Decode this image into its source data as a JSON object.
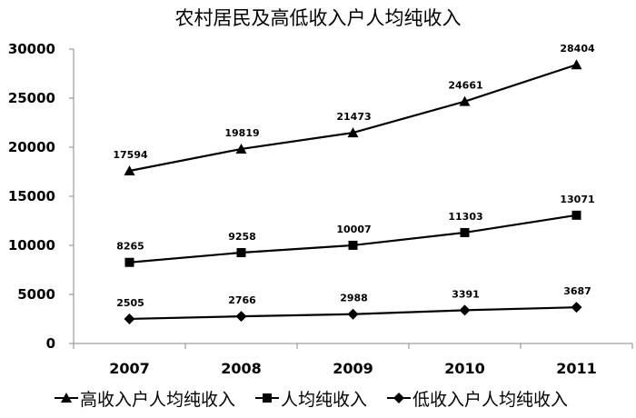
{
  "chart_data": {
    "type": "line",
    "title": "农村居民及高低收入户人均纯收入",
    "xlabel": "",
    "ylabel": "",
    "categories": [
      "2007",
      "2008",
      "2009",
      "2010",
      "2011"
    ],
    "series": [
      {
        "name": "高收入户人均纯收入",
        "marker": "triangle",
        "values": [
          17594,
          19819,
          21473,
          24661,
          28404
        ]
      },
      {
        "name": "人均纯收入",
        "marker": "square",
        "values": [
          8265,
          9258,
          10007,
          11303,
          13071
        ]
      },
      {
        "name": "低收入户人均纯收入",
        "marker": "diamond",
        "values": [
          2505,
          2766,
          2988,
          3391,
          3687
        ]
      }
    ],
    "ylim": [
      0,
      30000
    ],
    "yticks": [
      0,
      5000,
      10000,
      15000,
      20000,
      25000,
      30000
    ],
    "grid": false,
    "legend_position": "bottom",
    "data_labels": true,
    "line_color": "#000000"
  },
  "chart": {
    "title": "农村居民及高低收入户人均纯收入",
    "legend": [
      {
        "label": "高收入户人均纯收入",
        "icon": "triangle-marker-icon"
      },
      {
        "label": "人均纯收入",
        "icon": "square-marker-icon"
      },
      {
        "label": "低收入户人均纯收入",
        "icon": "diamond-marker-icon"
      }
    ]
  }
}
